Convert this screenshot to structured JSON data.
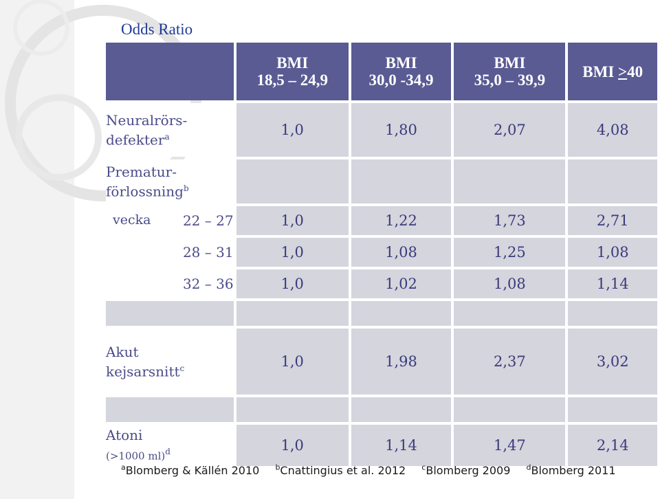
{
  "title": "Odds Ratio",
  "headers": [
    {
      "line1": "BMI",
      "line2": "18,5 – 24,9"
    },
    {
      "line1": "BMI",
      "line2": "30,0 -34,9"
    },
    {
      "line1": "BMI",
      "line2": "35,0 – 39,9"
    },
    {
      "line1": "BMI ",
      "gte": ">",
      "line2": "40"
    }
  ],
  "rows": {
    "neural": {
      "label1": "Neuralrörs-",
      "label2": "defekter",
      "sup": "a",
      "values": [
        "1,0",
        "1,80",
        "2,07",
        "4,08"
      ]
    },
    "premature": {
      "label1": "Prematur-",
      "label2": "förlossning",
      "sup": "b"
    },
    "week1": {
      "word": "vecka",
      "range": "22 – 27",
      "values": [
        "1,0",
        "1,22",
        "1,73",
        "2,71"
      ]
    },
    "week2": {
      "range": "28 – 31",
      "values": [
        "1,0",
        "1,08",
        "1,25",
        "1,08"
      ]
    },
    "week3": {
      "range": "32 – 36",
      "values": [
        "1,0",
        "1,02",
        "1,08",
        "1,14"
      ]
    },
    "cesarean": {
      "label1": "Akut",
      "label2": "kejsarsnitt",
      "sup": "c",
      "values": [
        "1,0",
        "1,98",
        "2,37",
        "3,02"
      ]
    },
    "atony": {
      "label1": "Atoni",
      "label2": "(>1000 ml)",
      "sup": "d",
      "values": [
        "1,0",
        "1,14",
        "1,47",
        "2,14"
      ]
    }
  },
  "footnotes": [
    {
      "sup": "a",
      "text": "Blomberg & Källén 2010"
    },
    {
      "sup": "b",
      "text": "Cnattingius et al. 2012"
    },
    {
      "sup": "c",
      "text": "Blomberg 2009"
    },
    {
      "sup": "d",
      "text": "Blomberg 2011"
    }
  ]
}
